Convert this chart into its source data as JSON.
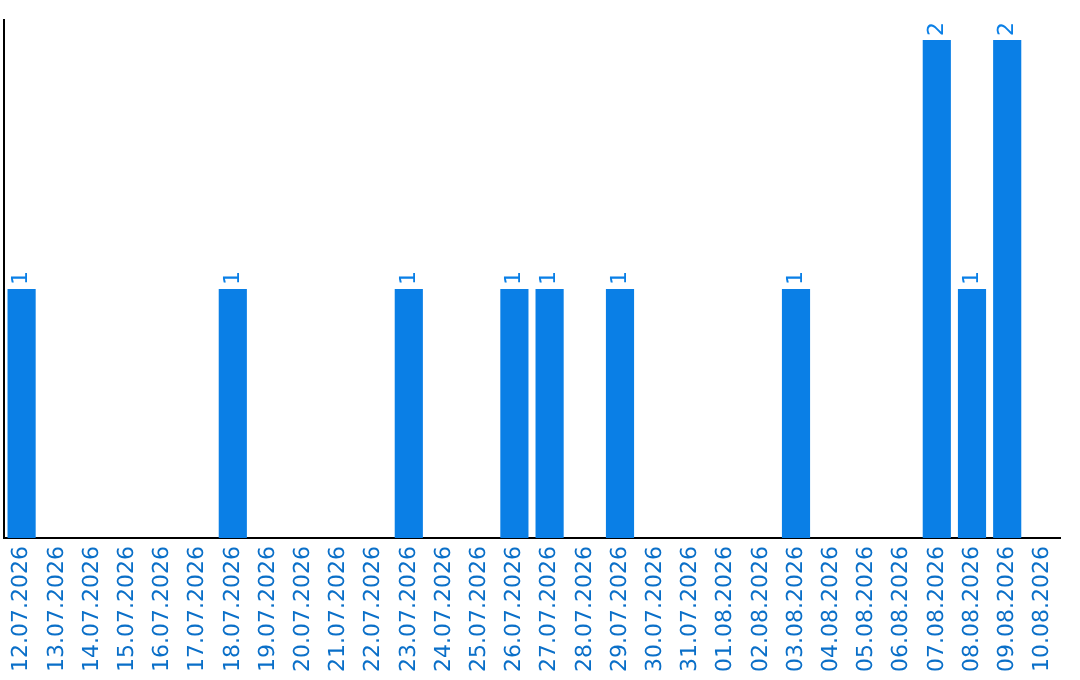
{
  "chart_data": {
    "type": "bar",
    "categories": [
      "12.07.2026",
      "13.07.2026",
      "14.07.2026",
      "15.07.2026",
      "16.07.2026",
      "17.07.2026",
      "18.07.2026",
      "19.07.2026",
      "20.07.2026",
      "21.07.2026",
      "22.07.2026",
      "23.07.2026",
      "24.07.2026",
      "25.07.2026",
      "26.07.2026",
      "27.07.2026",
      "28.07.2026",
      "29.07.2026",
      "30.07.2026",
      "31.07.2026",
      "01.08.2026",
      "02.08.2026",
      "03.08.2026",
      "04.08.2026",
      "05.08.2026",
      "06.08.2026",
      "07.08.2026",
      "08.08.2026",
      "09.08.2026",
      "10.08.2026"
    ],
    "values": [
      1,
      0,
      0,
      0,
      0,
      0,
      1,
      0,
      0,
      0,
      0,
      1,
      0,
      0,
      1,
      1,
      0,
      1,
      0,
      0,
      0,
      0,
      1,
      0,
      0,
      0,
      2,
      1,
      2,
      0
    ],
    "value_labels": [
      "1",
      null,
      null,
      null,
      null,
      null,
      "1",
      null,
      null,
      null,
      null,
      "1",
      null,
      null,
      "1",
      "1",
      null,
      "1",
      null,
      null,
      null,
      null,
      "1",
      null,
      null,
      null,
      "2",
      "1",
      "2",
      null
    ],
    "color": "#0a7fe6",
    "ylim": [
      0,
      2.08
    ],
    "tick_labels": "x",
    "grid": false,
    "legend": false
  }
}
